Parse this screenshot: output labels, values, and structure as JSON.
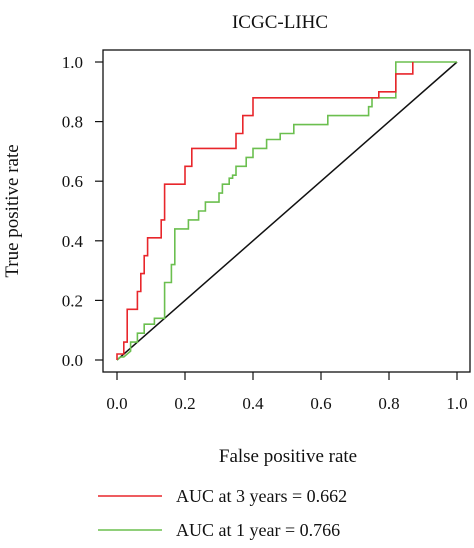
{
  "chart_data": {
    "type": "line",
    "title": "ICGC-LIHC",
    "xlabel": "False positive rate",
    "ylabel": "True positive rate",
    "xlim": [
      0.0,
      1.0
    ],
    "ylim": [
      0.0,
      1.0
    ],
    "x_ticks": [
      "0.0",
      "0.2",
      "0.4",
      "0.6",
      "0.8",
      "1.0"
    ],
    "y_ticks": [
      "0.0",
      "0.2",
      "0.4",
      "0.6",
      "0.8",
      "1.0"
    ],
    "grid": false,
    "legend_position": "bottom",
    "diagonal_reference": true,
    "series": [
      {
        "name": "AUC at 3 years = 0.662",
        "color": "#e8262b",
        "x": [
          0.0,
          0.0,
          0.02,
          0.02,
          0.03,
          0.03,
          0.06,
          0.06,
          0.07,
          0.07,
          0.08,
          0.08,
          0.09,
          0.09,
          0.13,
          0.13,
          0.14,
          0.14,
          0.2,
          0.2,
          0.22,
          0.22,
          0.35,
          0.35,
          0.37,
          0.37,
          0.4,
          0.4,
          0.77,
          0.77,
          0.82,
          0.82,
          0.87,
          0.87
        ],
        "y": [
          0.0,
          0.02,
          0.02,
          0.06,
          0.06,
          0.17,
          0.17,
          0.23,
          0.23,
          0.29,
          0.29,
          0.35,
          0.35,
          0.41,
          0.41,
          0.47,
          0.47,
          0.59,
          0.59,
          0.65,
          0.65,
          0.71,
          0.71,
          0.76,
          0.76,
          0.82,
          0.82,
          0.88,
          0.88,
          0.9,
          0.9,
          0.96,
          0.96,
          1.0
        ]
      },
      {
        "name": "AUC at 1 year = 0.766",
        "color": "#6bbf4f",
        "x": [
          0.0,
          0.01,
          0.02,
          0.04,
          0.04,
          0.06,
          0.06,
          0.08,
          0.08,
          0.11,
          0.11,
          0.14,
          0.14,
          0.16,
          0.16,
          0.17,
          0.17,
          0.21,
          0.21,
          0.24,
          0.24,
          0.26,
          0.26,
          0.3,
          0.3,
          0.31,
          0.31,
          0.33,
          0.33,
          0.34,
          0.34,
          0.35,
          0.35,
          0.38,
          0.38,
          0.4,
          0.4,
          0.44,
          0.44,
          0.48,
          0.48,
          0.52,
          0.52,
          0.62,
          0.62,
          0.74,
          0.74,
          0.75,
          0.75,
          0.82,
          0.82,
          1.0
        ],
        "y": [
          0.0,
          0.01,
          0.01,
          0.03,
          0.06,
          0.06,
          0.09,
          0.09,
          0.12,
          0.12,
          0.14,
          0.14,
          0.26,
          0.26,
          0.32,
          0.32,
          0.44,
          0.44,
          0.47,
          0.47,
          0.5,
          0.5,
          0.53,
          0.53,
          0.56,
          0.56,
          0.59,
          0.59,
          0.61,
          0.61,
          0.62,
          0.62,
          0.65,
          0.65,
          0.68,
          0.68,
          0.71,
          0.71,
          0.74,
          0.74,
          0.76,
          0.76,
          0.79,
          0.79,
          0.82,
          0.82,
          0.85,
          0.85,
          0.88,
          0.88,
          1.0,
          1.0
        ]
      }
    ]
  }
}
